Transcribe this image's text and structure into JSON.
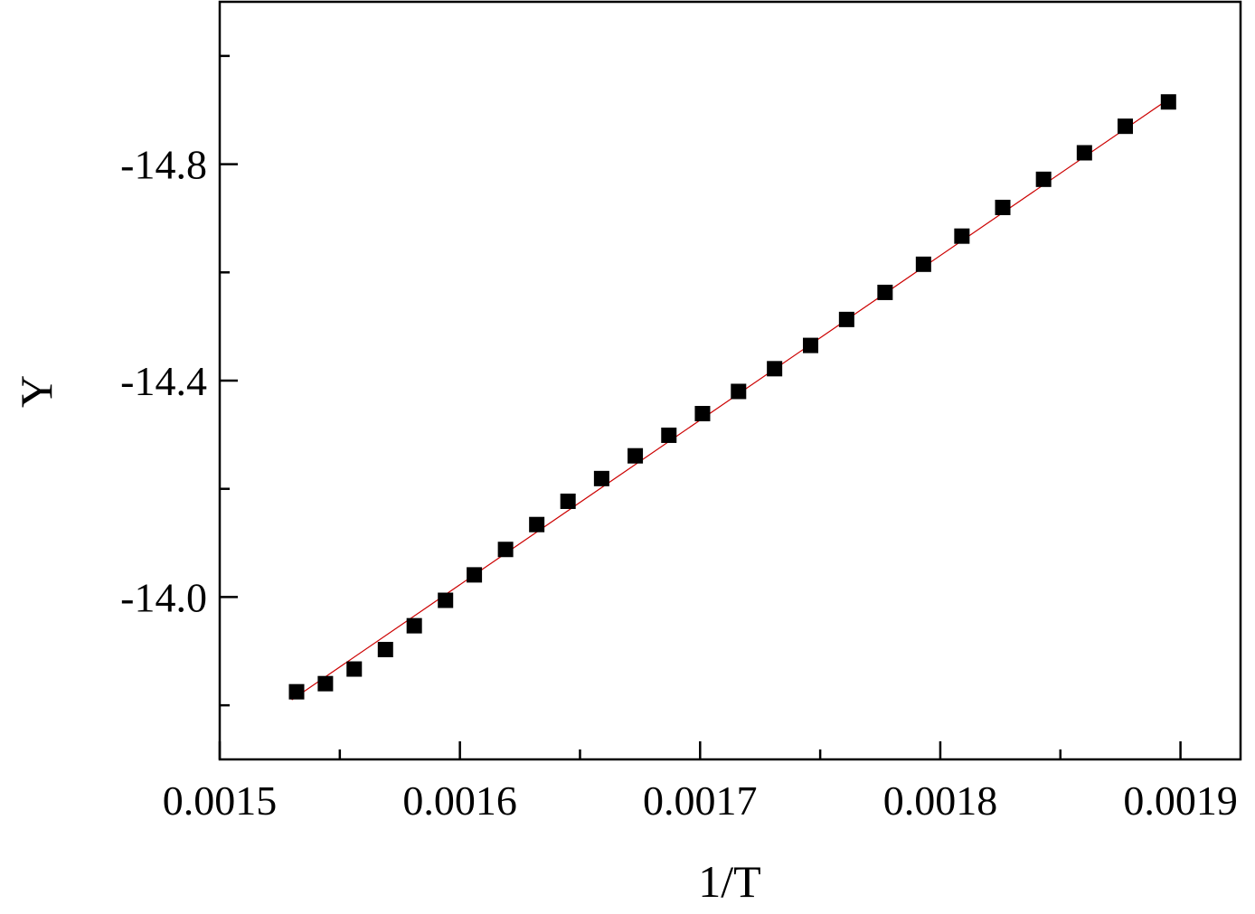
{
  "chart_data": {
    "type": "scatter",
    "title": "",
    "xlabel": "1/T",
    "ylabel": "Y",
    "y_reversed": true,
    "xlim": [
      0.0015,
      0.001925
    ],
    "ylim": [
      -13.7,
      -15.1
    ],
    "x_ticks": [
      {
        "value": 0.0015,
        "label": "0.0015"
      },
      {
        "value": 0.0016,
        "label": "0.0016"
      },
      {
        "value": 0.0017,
        "label": "0.0017"
      },
      {
        "value": 0.0018,
        "label": "0.0018"
      },
      {
        "value": 0.0019,
        "label": "0.0019"
      }
    ],
    "x_minor_ticks": [
      0.00155,
      0.00165,
      0.00175,
      0.00185
    ],
    "y_ticks": [
      {
        "value": -14.0,
        "label": "-14.0"
      },
      {
        "value": -14.4,
        "label": "-14.4"
      },
      {
        "value": -14.8,
        "label": "-14.8"
      }
    ],
    "y_minor_ticks": [
      -13.8,
      -14.2,
      -14.6,
      -15.0
    ],
    "grid": false,
    "legend": "none",
    "series": [
      {
        "kind": "points",
        "marker": "square",
        "color": "#000000",
        "x": [
          0.001532,
          0.001544,
          0.001556,
          0.001569,
          0.001581,
          0.001594,
          0.001606,
          0.001619,
          0.001632,
          0.001645,
          0.001659,
          0.001673,
          0.001687,
          0.001701,
          0.001716,
          0.001731,
          0.001746,
          0.001761,
          0.001777,
          0.001793,
          0.001809,
          0.001826,
          0.001843,
          0.00186,
          0.001877,
          0.001895
        ],
        "y": [
          -13.825,
          -13.84,
          -13.867,
          -13.903,
          -13.947,
          -13.994,
          -14.041,
          -14.088,
          -14.134,
          -14.177,
          -14.219,
          -14.261,
          -14.299,
          -14.339,
          -14.38,
          -14.422,
          -14.465,
          -14.513,
          -14.563,
          -14.615,
          -14.667,
          -14.72,
          -14.772,
          -14.821,
          -14.87,
          -14.915
        ]
      },
      {
        "kind": "fit-line",
        "color": "#cc0000",
        "x": [
          0.00153,
          0.001895
        ],
        "y": [
          -13.81,
          -14.92
        ]
      }
    ]
  }
}
